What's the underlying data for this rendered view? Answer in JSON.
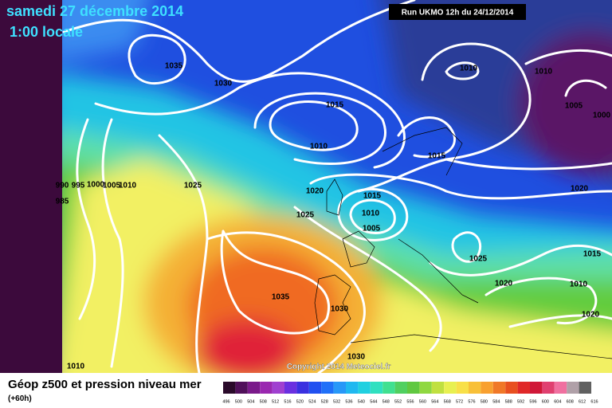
{
  "header": {
    "title": "samedi 27 décembre 2014",
    "subtitle": "1:00 locale",
    "run": "Run UKMO 12h du 24/12/2014"
  },
  "isobar_labels": [
    1035,
    1030,
    1015,
    1010,
    1010,
    1010,
    1005,
    1000,
    1015,
    1020,
    990,
    995,
    1000,
    1005,
    1010,
    985,
    1025,
    1020,
    1015,
    1010,
    1005,
    1025,
    1025,
    1015,
    1020,
    1010,
    1035,
    1030,
    1020,
    1030,
    1010
  ],
  "copyright": "Copyright 2014 Meteociel.fr",
  "legend": {
    "title": "Géop z500 et pression niveau mer",
    "subtitle": "(+60h)",
    "scale": [
      496,
      500,
      504,
      508,
      512,
      516,
      520,
      524,
      528,
      532,
      536,
      540,
      544,
      548,
      552,
      556,
      560,
      564,
      568,
      572,
      576,
      580,
      584,
      588,
      592,
      596,
      600,
      604,
      608,
      612,
      616
    ]
  }
}
